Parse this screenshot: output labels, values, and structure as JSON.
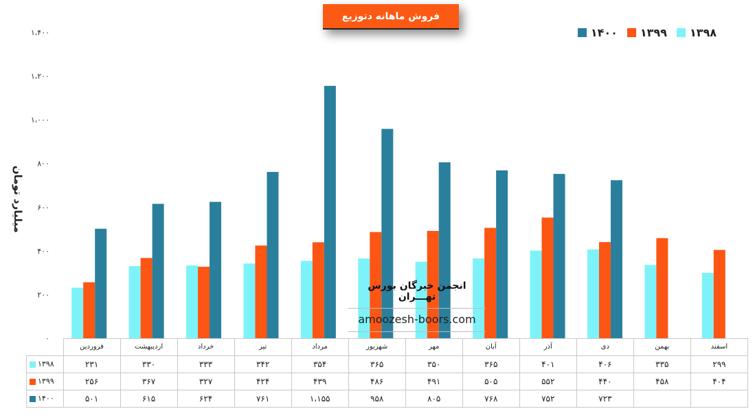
{
  "title": "فروش ماهانه دتوزیع",
  "watermark": {
    "title": "انجمن خبرگان بورس تهـــران",
    "url": "amoozesh-boors.com"
  },
  "chart_data": {
    "type": "bar",
    "ylabel": "میلیارد تومان",
    "ylim": [
      0,
      1400
    ],
    "yticks": [
      0,
      200,
      400,
      600,
      800,
      1000,
      1200,
      1400
    ],
    "ytick_labels": [
      "۰",
      "۲۰۰",
      "۴۰۰",
      "۶۰۰",
      "۸۰۰",
      "۱،۰۰۰",
      "۱،۲۰۰",
      "۱،۴۰۰"
    ],
    "grid": false,
    "legend": "top-right",
    "categories": [
      "فروردین",
      "اردیبهشت",
      "خرداد",
      "تیر",
      "مرداد",
      "شهریور",
      "مهر",
      "آبان",
      "آذر",
      "دی",
      "بهمن",
      "اسفند"
    ],
    "series": [
      {
        "name": "۱۳۹۸",
        "color": "#7df3f9",
        "values": [
          231,
          330,
          333,
          342,
          354,
          365,
          350,
          365,
          401,
          406,
          335,
          299
        ],
        "labels": [
          "۲۳۱",
          "۳۳۰",
          "۳۳۳",
          "۳۴۲",
          "۳۵۴",
          "۳۶۵",
          "۳۵۰",
          "۳۶۵",
          "۴۰۱",
          "۴۰۶",
          "۳۳۵",
          "۲۹۹"
        ]
      },
      {
        "name": "۱۳۹۹",
        "color": "#fc5514",
        "values": [
          256,
          367,
          327,
          424,
          439,
          486,
          491,
          505,
          552,
          440,
          458,
          404
        ],
        "labels": [
          "۲۵۶",
          "۳۶۷",
          "۳۲۷",
          "۴۲۴",
          "۴۳۹",
          "۴۸۶",
          "۴۹۱",
          "۵۰۵",
          "۵۵۲",
          "۴۴۰",
          "۴۵۸",
          "۴۰۴"
        ]
      },
      {
        "name": "۱۴۰۰",
        "color": "#2a7f9d",
        "values": [
          501,
          615,
          624,
          761,
          1155,
          958,
          805,
          768,
          752,
          723,
          null,
          null
        ],
        "labels": [
          "۵۰۱",
          "۶۱۵",
          "۶۲۴",
          "۷۶۱",
          "۱،۱۵۵",
          "۹۵۸",
          "۸۰۵",
          "۷۶۸",
          "۷۵۲",
          "۷۲۳",
          "",
          ""
        ]
      }
    ]
  }
}
